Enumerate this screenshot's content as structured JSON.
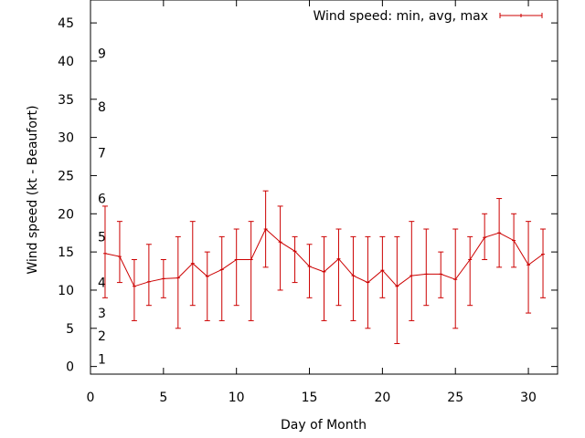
{
  "chart_data": {
    "type": "line",
    "title": "",
    "xlabel": "Day of Month",
    "ylabel": "Wind speed (kt - Beaufort)",
    "xlim": [
      0,
      32
    ],
    "ylim": [
      -1,
      48
    ],
    "xticks": [
      0,
      5,
      10,
      15,
      20,
      25,
      30
    ],
    "yticks": [
      0,
      5,
      10,
      15,
      20,
      25,
      30,
      35,
      40,
      45
    ],
    "grid": false,
    "legend_position": "top-right",
    "series": [
      {
        "name": "Wind speed: min, avg, max",
        "color": "#cc0000",
        "style": "line with error bars",
        "x": [
          1,
          2,
          3,
          4,
          5,
          6,
          7,
          8,
          9,
          10,
          11,
          12,
          13,
          14,
          15,
          16,
          17,
          18,
          19,
          20,
          21,
          22,
          23,
          24,
          25,
          26,
          27,
          28,
          29,
          30,
          31
        ],
        "avg": [
          14.8,
          14.4,
          10.5,
          11.1,
          11.5,
          11.6,
          13.5,
          11.8,
          12.7,
          14.0,
          14.0,
          18.0,
          16.3,
          15.1,
          13.1,
          12.4,
          14.1,
          11.9,
          11.0,
          12.6,
          10.5,
          11.9,
          12.1,
          12.1,
          11.4,
          14.0,
          16.9,
          17.5,
          16.5,
          13.3,
          14.7
        ],
        "min": [
          9,
          11,
          6,
          8,
          9,
          5,
          8,
          6,
          6,
          8,
          6,
          13,
          10,
          11,
          9,
          6,
          8,
          6,
          5,
          9,
          3,
          6,
          8,
          9,
          5,
          8,
          14,
          13,
          13,
          7,
          9
        ],
        "max": [
          21,
          19,
          14,
          16,
          14,
          17,
          19,
          15,
          17,
          18,
          19,
          23,
          21,
          17,
          16,
          17,
          18,
          17,
          17,
          17,
          17,
          19,
          18,
          15,
          18,
          17,
          20,
          22,
          20,
          19,
          18
        ]
      }
    ],
    "annotations": [
      {
        "text": "1",
        "y": 1
      },
      {
        "text": "2",
        "y": 4
      },
      {
        "text": "3",
        "y": 7
      },
      {
        "text": "4",
        "y": 11
      },
      {
        "text": "5",
        "y": 17
      },
      {
        "text": "6",
        "y": 22
      },
      {
        "text": "7",
        "y": 28
      },
      {
        "text": "8",
        "y": 34
      },
      {
        "text": "9",
        "y": 41
      }
    ]
  }
}
